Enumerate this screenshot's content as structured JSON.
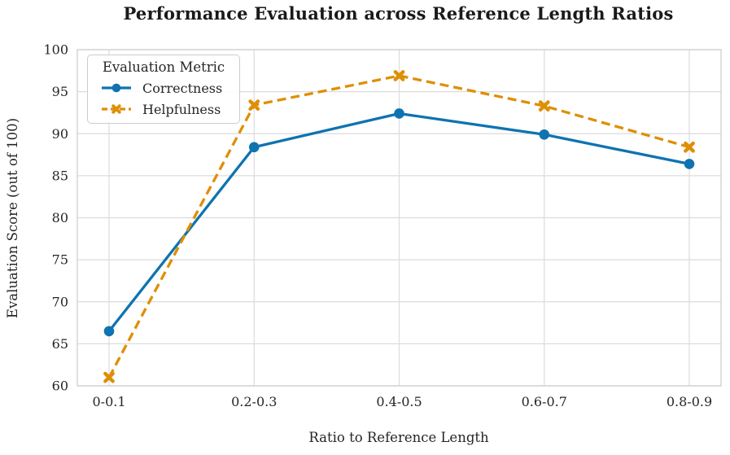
{
  "chart_data": {
    "type": "line",
    "title": "Performance Evaluation across Reference Length Ratios",
    "xlabel": "Ratio to Reference Length",
    "ylabel": "Evaluation Score (out of 100)",
    "categories": [
      "0-0.1",
      "0.2-0.3",
      "0.4-0.5",
      "0.6-0.7",
      "0.8-0.9"
    ],
    "series": [
      {
        "name": "Correctness",
        "values": [
          66.5,
          88.4,
          92.4,
          89.9,
          86.4
        ],
        "color": "#0f73b0",
        "marker": "circle",
        "line_style": "solid"
      },
      {
        "name": "Helpfulness",
        "values": [
          61.0,
          93.4,
          96.9,
          93.3,
          88.4
        ],
        "color": "#de8f05",
        "marker": "x",
        "line_style": "dashed"
      }
    ],
    "ylim": [
      60,
      100
    ],
    "yticks": [
      60,
      65,
      70,
      75,
      80,
      85,
      90,
      95,
      100
    ],
    "grid": true,
    "legend": {
      "title": "Evaluation Metric",
      "position": "upper left"
    }
  },
  "colors": {
    "grid": "#dcdcdc",
    "frame": "#cfcfcf",
    "text": "#262626",
    "background": "#ffffff"
  }
}
